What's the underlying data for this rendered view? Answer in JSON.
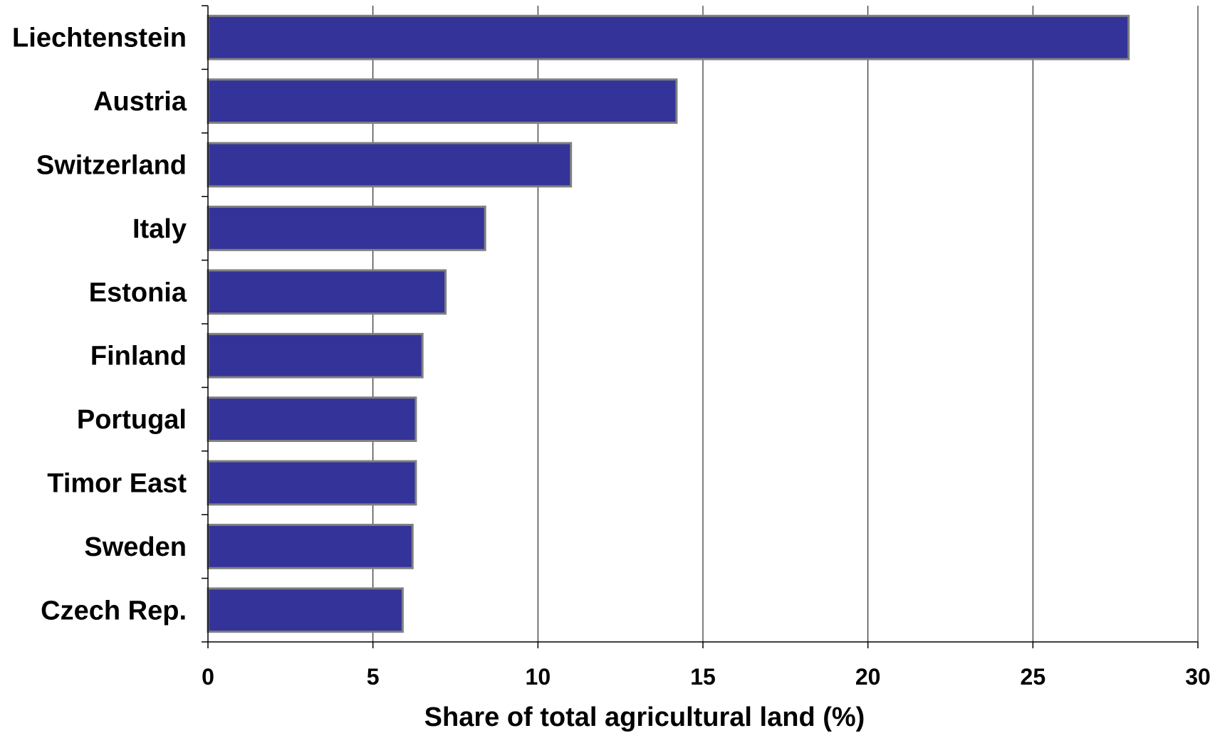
{
  "chart_data": {
    "type": "bar",
    "orientation": "horizontal",
    "title": "",
    "xlabel": "Share of total agricultural land (%)",
    "ylabel": "",
    "xlim": [
      0,
      30
    ],
    "xticks": [
      0,
      5,
      10,
      15,
      20,
      25,
      30
    ],
    "grid": "vertical",
    "legend": "none",
    "categories": [
      "Liechtenstein",
      "Austria",
      "Switzerland",
      "Italy",
      "Estonia",
      "Finland",
      "Portugal",
      "Timor East",
      "Sweden",
      "Czech Rep."
    ],
    "values": [
      27.9,
      14.2,
      11.0,
      8.4,
      7.2,
      6.5,
      6.3,
      6.3,
      6.2,
      5.9
    ],
    "colors": {
      "bar_fill": "#333399",
      "bar_stroke": "#808080",
      "grid": "#000000",
      "axis": "#000000"
    }
  }
}
